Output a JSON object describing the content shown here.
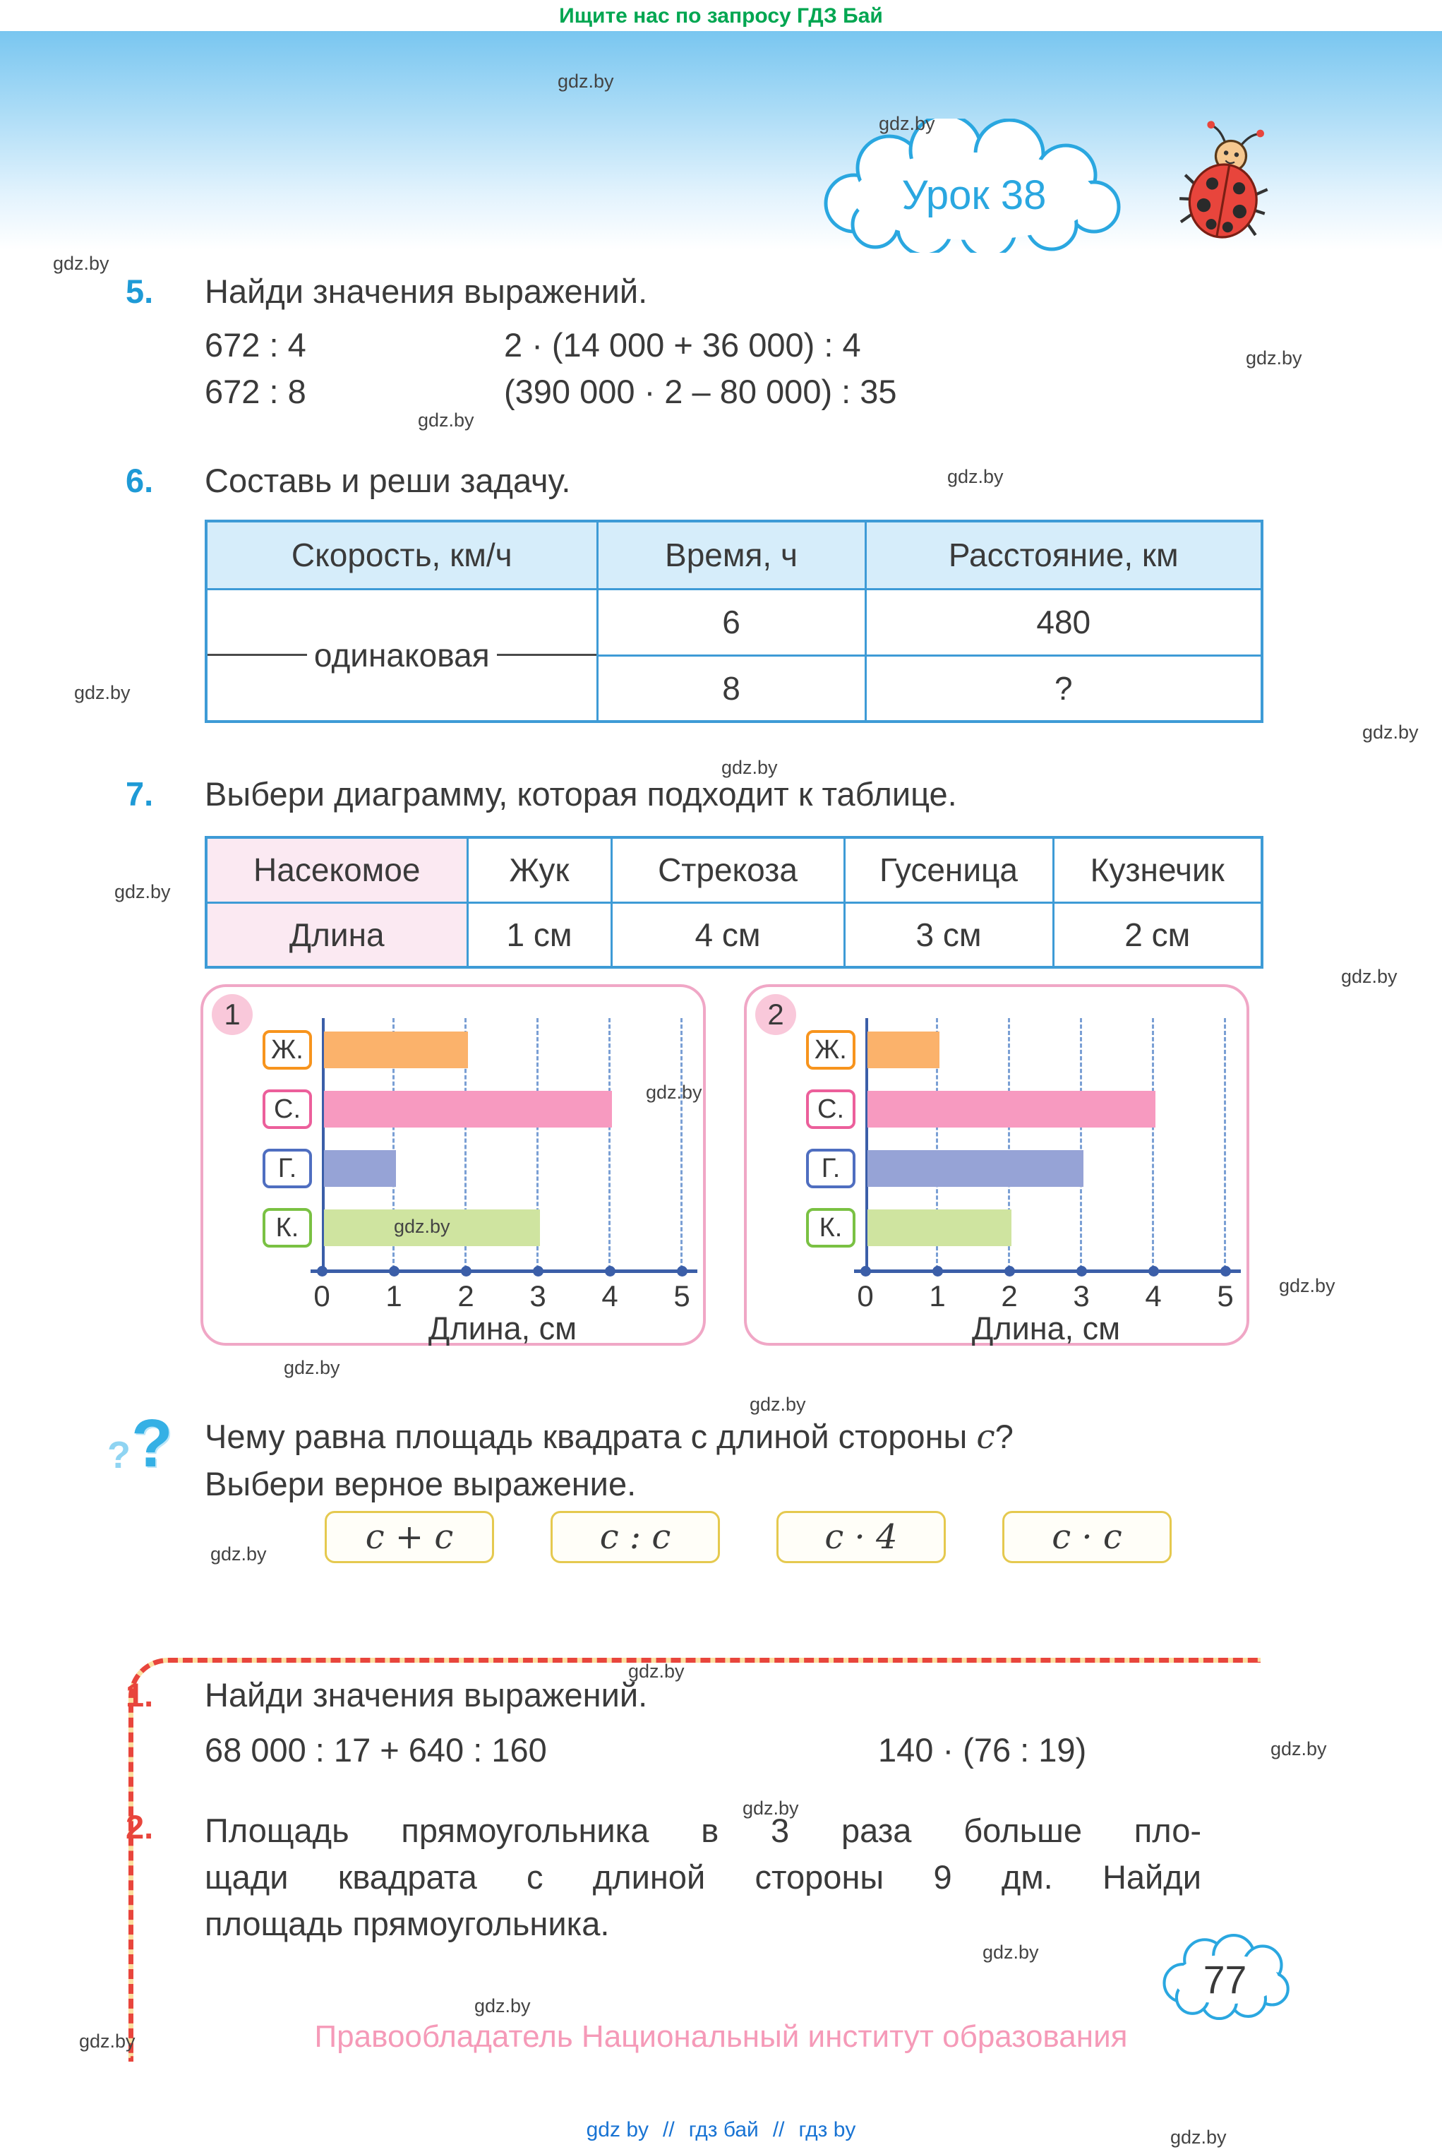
{
  "watermark": "gdz.by",
  "top_banner": "Ищите нас по запросу ГДЗ Бай",
  "lesson_badge": "Урок 38",
  "page_number": "77",
  "footer": "Правообладатель Национальный институт образования",
  "bottom_links": {
    "l1": "gdz by",
    "sep1": "//",
    "l2": "гдз бай",
    "sep2": "//",
    "l3": "гдз by"
  },
  "task5": {
    "number": "5.",
    "title": "Найди значения выражений.",
    "row1_left": "672 : 4",
    "row1_right": "2 · (14 000 + 36 000) : 4",
    "row2_left": "672 : 8",
    "row2_right": "(390 000 · 2 – 80 000) : 35"
  },
  "task6": {
    "number": "6.",
    "title": "Составь и реши задачу.",
    "table": {
      "col1": "Скорость, км/ч",
      "col2": "Время, ч",
      "col3": "Расстояние, км",
      "speed": "одинаковая",
      "r1c2": "6",
      "r1c3": "480",
      "r2c2": "8",
      "r2c3": "?"
    }
  },
  "task7": {
    "number": "7.",
    "title": "Выбери диаграмму, которая подходит к таблице.",
    "table": {
      "h1": "Насекомое",
      "h2": "Жук",
      "h3": "Стрекоза",
      "h4": "Гусеница",
      "h5": "Кузнечик",
      "r1": "Длина",
      "r2": "1 см",
      "r3": "4 см",
      "r4": "3 см",
      "r5": "2 см"
    }
  },
  "chart_data": [
    {
      "type": "bar",
      "orientation": "horizontal",
      "badge": "1",
      "categories": [
        "Ж.",
        "С.",
        "Г.",
        "К."
      ],
      "values": [
        2,
        4,
        1,
        3
      ],
      "xlabel": "Длина, см",
      "xticks": [
        0,
        1,
        2,
        3,
        4,
        5
      ],
      "xlim": [
        0,
        5
      ],
      "grid": "dashed-vertical",
      "legend": "none"
    },
    {
      "type": "bar",
      "orientation": "horizontal",
      "badge": "2",
      "categories": [
        "Ж.",
        "С.",
        "Г.",
        "К."
      ],
      "values": [
        1,
        4,
        3,
        2
      ],
      "xlabel": "Длина, см",
      "xticks": [
        0,
        1,
        2,
        3,
        4,
        5
      ],
      "xlim": [
        0,
        5
      ],
      "grid": "dashed-vertical",
      "legend": "none"
    }
  ],
  "question": {
    "line1_prefix": "Чему равна площадь квадрата с длиной стороны ",
    "variable": "c",
    "line1_suffix": "?",
    "line2": "Выбери верное выражение.",
    "options": [
      "c + c",
      "c : c",
      "c · 4",
      "c · c"
    ]
  },
  "homework": {
    "item1_number": "1.",
    "item1_title": "Найди значения выражений.",
    "item1_left": "68 000 : 17 + 640 : 160",
    "item1_right": "140 · (76 : 19)",
    "item2_number": "2.",
    "item2_lines": [
      "Площадь прямоугольника в 3 раза больше пло-",
      "щади квадрата с длиной стороны 9 дм. Найди",
      "площадь прямоугольника."
    ]
  },
  "colors": {
    "task_number_blue": "#1e9ad6",
    "hw_number_red": "#e8453c",
    "table_border": "#3e9bd6",
    "table_header_bg": "#d6edfa",
    "pink_col_bg": "#fbe9f2",
    "chart_border": "#f0a7c6",
    "badge_bg": "#f9c8da",
    "axis": "#3b5ea8",
    "grid": "#7a9fd4",
    "option_border": "#e5c94f",
    "category_borders": [
      "#f7941d",
      "#ec5f9b",
      "#4f6ec0",
      "#7ac143"
    ],
    "bar_colors": [
      "#fbb26b",
      "#f79ac0",
      "#96a3d6",
      "#cfe4a0"
    ],
    "banner_green": "#00a651",
    "footer_pink": "#f59ab8",
    "link_blue": "#1873d3",
    "cloud_blue": "#2aa7e0"
  }
}
